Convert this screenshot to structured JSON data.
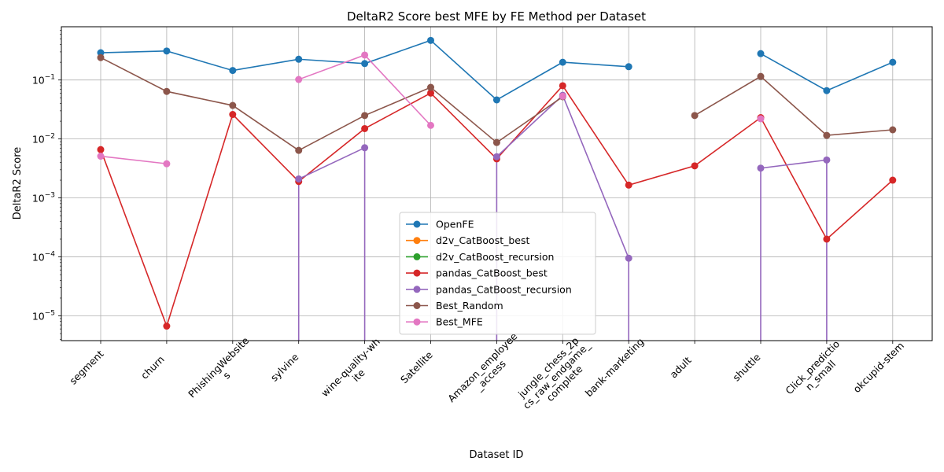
{
  "chart_data": {
    "type": "line",
    "title": "DeltaR2 Score best MFE by FE Method per Dataset",
    "xlabel": "Dataset ID",
    "ylabel": "DeltaR2 Score",
    "yscale": "log",
    "ylim": [
      3.8e-06,
      0.8
    ],
    "yticks": [
      {
        "value": 1e-05,
        "base": "10",
        "exp": "−5"
      },
      {
        "value": 0.0001,
        "base": "10",
        "exp": "−4"
      },
      {
        "value": 0.001,
        "base": "10",
        "exp": "−3"
      },
      {
        "value": 0.01,
        "base": "10",
        "exp": "−2"
      },
      {
        "value": 0.1,
        "base": "10",
        "exp": "−1"
      }
    ],
    "grid": true,
    "legend_position": "lower-center",
    "categories": [
      [
        "segment"
      ],
      [
        "churn"
      ],
      [
        "PhishingWebsite",
        "s"
      ],
      [
        "sylvine"
      ],
      [
        "wine-quality-wh",
        "ite"
      ],
      [
        "Satellite"
      ],
      [
        "Amazon_employee",
        "_access"
      ],
      [
        "jungle_chess_2p",
        "cs_raw_endgame_",
        "complete"
      ],
      [
        "bank-marketing"
      ],
      [
        "adult"
      ],
      [
        "shuttle"
      ],
      [
        "Click_predictio",
        "n_small"
      ],
      [
        "okcupid-stem"
      ]
    ],
    "series": [
      {
        "name": "OpenFE",
        "color": "#1f77b4",
        "values": [
          0.29,
          0.31,
          0.145,
          0.225,
          0.19,
          0.47,
          0.046,
          0.2,
          0.168,
          null,
          0.28,
          0.066,
          0.2
        ]
      },
      {
        "name": "d2v_CatBoost_best",
        "color": "#ff7f0e",
        "values": [
          null,
          null,
          null,
          null,
          null,
          null,
          null,
          null,
          null,
          null,
          null,
          null,
          null
        ]
      },
      {
        "name": "d2v_CatBoost_recursion",
        "color": "#2ca02c",
        "values": [
          null,
          null,
          null,
          null,
          null,
          null,
          null,
          null,
          null,
          null,
          null,
          null,
          null
        ]
      },
      {
        "name": "pandas_CatBoost_best",
        "color": "#d62728",
        "values": [
          0.0066,
          6.7e-06,
          0.026,
          0.0019,
          0.015,
          0.06,
          0.0046,
          0.08,
          0.00165,
          0.0035,
          0.023,
          0.0002,
          0.002
        ]
      },
      {
        "name": "pandas_CatBoost_recursion",
        "color": "#9467bd",
        "values": [
          null,
          null,
          null,
          0.0021,
          0.0071,
          null,
          0.005,
          0.055,
          9.5e-05,
          null,
          0.0032,
          0.0044,
          null
        ],
        "drops_to_zero": [
          3,
          4,
          6,
          8,
          10,
          11
        ]
      },
      {
        "name": "Best_Random",
        "color": "#8c564b",
        "values": [
          0.24,
          0.064,
          0.037,
          0.0064,
          0.025,
          0.075,
          0.0087,
          0.052,
          null,
          0.025,
          0.115,
          0.0115,
          0.0143
        ]
      },
      {
        "name": "Best_MFE",
        "color": "#e377c2",
        "values": [
          0.0051,
          0.0038,
          null,
          0.102,
          0.265,
          0.017,
          null,
          0.053,
          null,
          null,
          0.022,
          null,
          null
        ]
      }
    ]
  }
}
